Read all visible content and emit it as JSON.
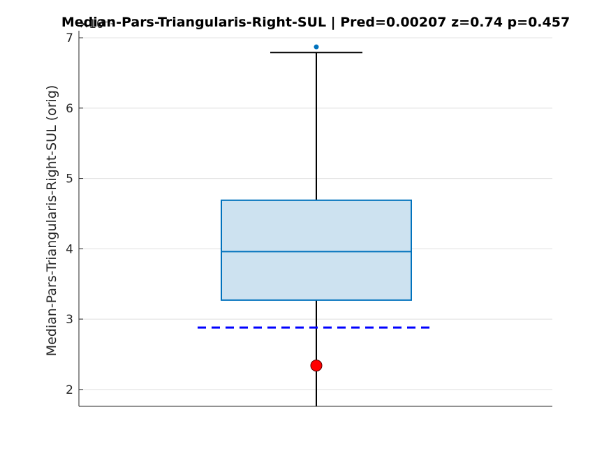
{
  "chart_data": {
    "type": "boxplot",
    "title": "Median-Pars-Triangularis-Right-SUL  |  Pred=0.00207  z=0.74  p=0.457",
    "ylabel": "Median-Pars-Triangularis-Right-SUL (orig)",
    "y_exponent_label": "×10⁻³",
    "y_scale_factor": 0.001,
    "ylim": [
      1.76,
      7.1
    ],
    "yticks": [
      2,
      3,
      4,
      5,
      6,
      7
    ],
    "ytick_labels": [
      "2",
      "3",
      "4",
      "5",
      "6",
      "7"
    ],
    "grid": true,
    "box": {
      "q1": 3.27,
      "median": 3.96,
      "q3": 4.69,
      "whisker_low": 1.76,
      "whisker_high": 6.79,
      "outliers": [
        6.87
      ]
    },
    "reference_line": {
      "value": 2.88,
      "style": "dashed"
    },
    "subject_point": {
      "value": 2.34
    }
  },
  "colors": {
    "box_edge": "#0072bd",
    "box_fill": "#cde2f0",
    "whisker": "#000000",
    "reference_line": "#0000ff",
    "subject_point": "#ff0000",
    "outlier": "#0072bd",
    "grid": "#dfdfdf",
    "axis": "#262626"
  }
}
